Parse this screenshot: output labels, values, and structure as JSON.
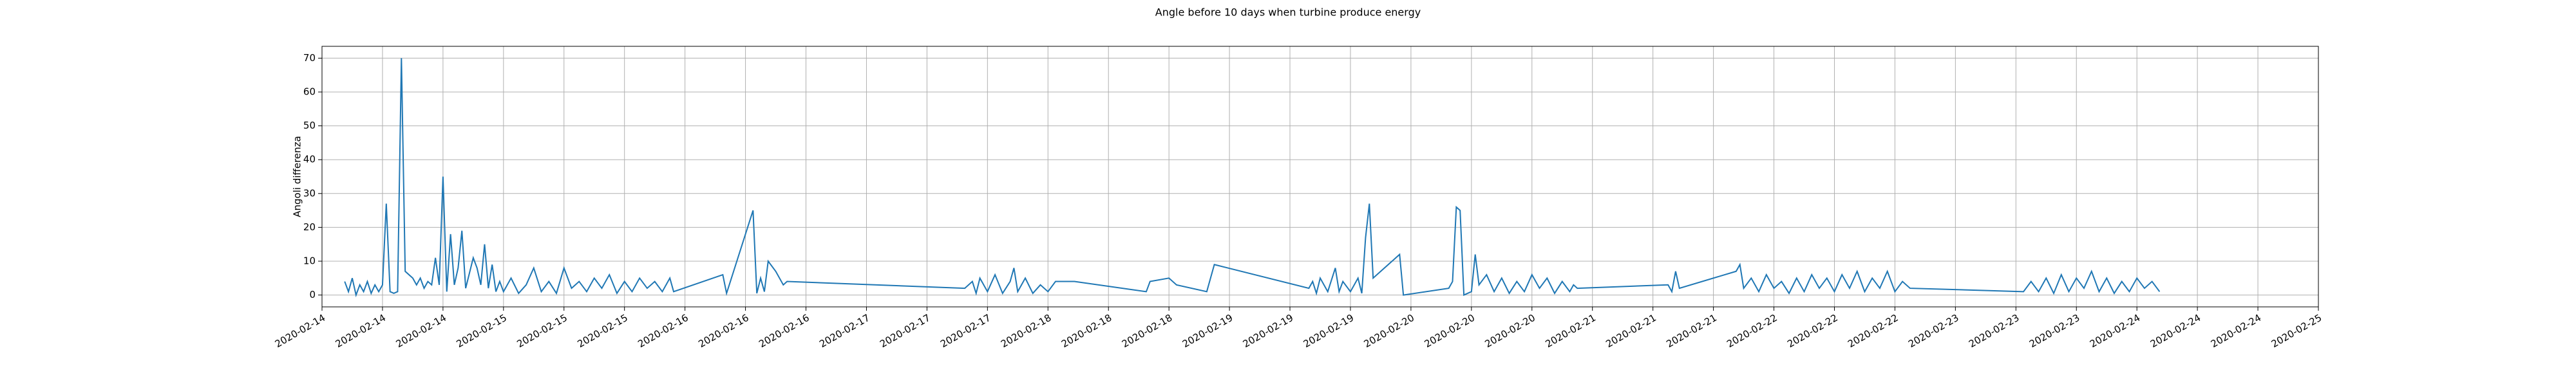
{
  "chart_data": {
    "type": "line",
    "title": "Angle before 10 days when turbine produce energy",
    "y_label": "Angoli differenza",
    "grid": true,
    "xlim": [
      "2020-02-14 00:00",
      "2020-02-25 00:00"
    ],
    "ylim": [
      -3.5,
      73.5
    ],
    "yticks": [
      0,
      10,
      20,
      30,
      40,
      50,
      60,
      70
    ],
    "xticks": [
      {
        "value": "2020-02-14 00:00",
        "label": "2020-02-14"
      },
      {
        "value": "2020-02-14 08:00",
        "label": "2020-02-14"
      },
      {
        "value": "2020-02-14 16:00",
        "label": "2020-02-14"
      },
      {
        "value": "2020-02-15 00:00",
        "label": "2020-02-15"
      },
      {
        "value": "2020-02-15 08:00",
        "label": "2020-02-15"
      },
      {
        "value": "2020-02-15 16:00",
        "label": "2020-02-15"
      },
      {
        "value": "2020-02-16 00:00",
        "label": "2020-02-16"
      },
      {
        "value": "2020-02-16 08:00",
        "label": "2020-02-16"
      },
      {
        "value": "2020-02-16 16:00",
        "label": "2020-02-16"
      },
      {
        "value": "2020-02-17 00:00",
        "label": "2020-02-17"
      },
      {
        "value": "2020-02-17 08:00",
        "label": "2020-02-17"
      },
      {
        "value": "2020-02-17 16:00",
        "label": "2020-02-17"
      },
      {
        "value": "2020-02-18 00:00",
        "label": "2020-02-18"
      },
      {
        "value": "2020-02-18 08:00",
        "label": "2020-02-18"
      },
      {
        "value": "2020-02-18 16:00",
        "label": "2020-02-18"
      },
      {
        "value": "2020-02-19 00:00",
        "label": "2020-02-19"
      },
      {
        "value": "2020-02-19 08:00",
        "label": "2020-02-19"
      },
      {
        "value": "2020-02-19 16:00",
        "label": "2020-02-19"
      },
      {
        "value": "2020-02-20 00:00",
        "label": "2020-02-20"
      },
      {
        "value": "2020-02-20 08:00",
        "label": "2020-02-20"
      },
      {
        "value": "2020-02-20 16:00",
        "label": "2020-02-20"
      },
      {
        "value": "2020-02-21 00:00",
        "label": "2020-02-21"
      },
      {
        "value": "2020-02-21 08:00",
        "label": "2020-02-21"
      },
      {
        "value": "2020-02-21 16:00",
        "label": "2020-02-21"
      },
      {
        "value": "2020-02-22 00:00",
        "label": "2020-02-22"
      },
      {
        "value": "2020-02-22 08:00",
        "label": "2020-02-22"
      },
      {
        "value": "2020-02-22 16:00",
        "label": "2020-02-22"
      },
      {
        "value": "2020-02-23 00:00",
        "label": "2020-02-23"
      },
      {
        "value": "2020-02-23 08:00",
        "label": "2020-02-23"
      },
      {
        "value": "2020-02-23 16:00",
        "label": "2020-02-23"
      },
      {
        "value": "2020-02-24 00:00",
        "label": "2020-02-24"
      },
      {
        "value": "2020-02-24 08:00",
        "label": "2020-02-24"
      },
      {
        "value": "2020-02-24 16:00",
        "label": "2020-02-24"
      },
      {
        "value": "2020-02-25 00:00",
        "label": "2020-02-25"
      }
    ],
    "series": [
      {
        "color": "#1f77b4",
        "x": [
          "2020-02-14 03:00",
          "2020-02-14 03:30",
          "2020-02-14 04:00",
          "2020-02-14 04:30",
          "2020-02-14 05:00",
          "2020-02-14 05:30",
          "2020-02-14 06:00",
          "2020-02-14 06:30",
          "2020-02-14 07:00",
          "2020-02-14 07:30",
          "2020-02-14 08:00",
          "2020-02-14 08:30",
          "2020-02-14 09:00",
          "2020-02-14 09:30",
          "2020-02-14 10:00",
          "2020-02-14 10:30",
          "2020-02-14 11:00",
          "2020-02-14 12:00",
          "2020-02-14 12:30",
          "2020-02-14 13:00",
          "2020-02-14 13:30",
          "2020-02-14 14:00",
          "2020-02-14 14:30",
          "2020-02-14 15:00",
          "2020-02-14 15:30",
          "2020-02-14 16:00",
          "2020-02-14 16:30",
          "2020-02-14 17:00",
          "2020-02-14 17:30",
          "2020-02-14 18:00",
          "2020-02-14 18:30",
          "2020-02-14 19:00",
          "2020-02-14 20:00",
          "2020-02-14 20:30",
          "2020-02-14 21:00",
          "2020-02-14 21:30",
          "2020-02-14 22:00",
          "2020-02-14 22:30",
          "2020-02-14 23:00",
          "2020-02-14 23:30",
          "2020-02-15 00:00",
          "2020-02-15 01:00",
          "2020-02-15 02:00",
          "2020-02-15 03:00",
          "2020-02-15 04:00",
          "2020-02-15 05:00",
          "2020-02-15 06:00",
          "2020-02-15 07:00",
          "2020-02-15 08:00",
          "2020-02-15 09:00",
          "2020-02-15 10:00",
          "2020-02-15 11:00",
          "2020-02-15 12:00",
          "2020-02-15 13:00",
          "2020-02-15 14:00",
          "2020-02-15 15:00",
          "2020-02-15 16:00",
          "2020-02-15 17:00",
          "2020-02-15 18:00",
          "2020-02-15 19:00",
          "2020-02-15 20:00",
          "2020-02-15 21:00",
          "2020-02-15 22:00",
          "2020-02-15 22:30",
          "2020-02-16 05:00",
          "2020-02-16 05:30",
          "2020-02-16 06:00",
          "2020-02-16 09:00",
          "2020-02-16 09:30",
          "2020-02-16 10:00",
          "2020-02-16 10:30",
          "2020-02-16 11:00",
          "2020-02-16 12:00",
          "2020-02-16 13:00",
          "2020-02-16 13:30",
          "2020-02-17 13:00",
          "2020-02-17 14:00",
          "2020-02-17 14:30",
          "2020-02-17 15:00",
          "2020-02-17 16:00",
          "2020-02-17 17:00",
          "2020-02-17 18:00",
          "2020-02-17 19:00",
          "2020-02-17 19:30",
          "2020-02-17 20:00",
          "2020-02-17 21:00",
          "2020-02-17 22:00",
          "2020-02-17 23:00",
          "2020-02-18 00:00",
          "2020-02-18 01:00",
          "2020-02-18 03:30",
          "2020-02-18 13:00",
          "2020-02-18 13:30",
          "2020-02-18 16:00",
          "2020-02-18 17:00",
          "2020-02-18 21:00",
          "2020-02-18 22:00",
          "2020-02-19 10:30",
          "2020-02-19 11:00",
          "2020-02-19 11:30",
          "2020-02-19 12:00",
          "2020-02-19 13:00",
          "2020-02-19 14:00",
          "2020-02-19 14:30",
          "2020-02-19 15:00",
          "2020-02-19 16:00",
          "2020-02-19 17:00",
          "2020-02-19 17:30",
          "2020-02-19 18:00",
          "2020-02-19 18:30",
          "2020-02-19 19:00",
          "2020-02-19 22:30",
          "2020-02-19 23:00",
          "2020-02-20 05:00",
          "2020-02-20 05:30",
          "2020-02-20 06:00",
          "2020-02-20 06:30",
          "2020-02-20 07:00",
          "2020-02-20 08:00",
          "2020-02-20 08:30",
          "2020-02-20 09:00",
          "2020-02-20 10:00",
          "2020-02-20 11:00",
          "2020-02-20 12:00",
          "2020-02-20 13:00",
          "2020-02-20 14:00",
          "2020-02-20 15:00",
          "2020-02-20 16:00",
          "2020-02-20 17:00",
          "2020-02-20 18:00",
          "2020-02-20 19:00",
          "2020-02-20 20:00",
          "2020-02-20 21:00",
          "2020-02-20 21:30",
          "2020-02-20 22:00",
          "2020-02-21 10:00",
          "2020-02-21 10:30",
          "2020-02-21 11:00",
          "2020-02-21 11:30",
          "2020-02-21 19:00",
          "2020-02-21 19:30",
          "2020-02-21 20:00",
          "2020-02-21 21:00",
          "2020-02-21 22:00",
          "2020-02-21 23:00",
          "2020-02-22 00:00",
          "2020-02-22 01:00",
          "2020-02-22 02:00",
          "2020-02-22 03:00",
          "2020-02-22 04:00",
          "2020-02-22 05:00",
          "2020-02-22 06:00",
          "2020-02-22 07:00",
          "2020-02-22 08:00",
          "2020-02-22 09:00",
          "2020-02-22 10:00",
          "2020-02-22 11:00",
          "2020-02-22 12:00",
          "2020-02-22 13:00",
          "2020-02-22 14:00",
          "2020-02-22 15:00",
          "2020-02-22 16:00",
          "2020-02-22 17:00",
          "2020-02-22 18:00",
          "2020-02-23 09:00",
          "2020-02-23 10:00",
          "2020-02-23 11:00",
          "2020-02-23 12:00",
          "2020-02-23 13:00",
          "2020-02-23 14:00",
          "2020-02-23 15:00",
          "2020-02-23 16:00",
          "2020-02-23 17:00",
          "2020-02-23 18:00",
          "2020-02-23 19:00",
          "2020-02-23 20:00",
          "2020-02-23 21:00",
          "2020-02-23 22:00",
          "2020-02-23 23:00",
          "2020-02-24 00:00",
          "2020-02-24 01:00",
          "2020-02-24 02:00",
          "2020-02-24 03:00"
        ],
        "values": [
          4,
          1,
          5,
          0,
          3,
          1,
          4,
          0.5,
          3,
          1,
          3,
          27,
          1,
          0.5,
          1,
          70,
          7,
          5,
          3,
          5,
          2,
          4,
          3,
          11,
          3,
          35,
          1,
          18,
          3,
          8,
          19,
          2,
          11,
          8,
          3,
          15,
          2,
          9,
          1,
          4,
          1,
          5,
          0.5,
          3,
          8,
          1,
          4,
          0.5,
          8,
          2,
          4,
          1,
          5,
          2,
          6,
          0.5,
          4,
          1,
          5,
          2,
          4,
          1,
          5,
          1,
          6,
          0.5,
          4,
          25,
          0.5,
          5,
          1,
          10,
          7,
          3,
          4,
          2,
          4,
          0.5,
          5,
          1,
          6,
          0.5,
          4,
          8,
          1,
          5,
          0.5,
          3,
          1,
          4,
          4,
          1,
          4,
          5,
          3,
          1,
          9,
          2,
          4,
          0.5,
          5,
          1,
          8,
          1,
          4,
          1,
          5,
          0.5,
          17,
          27,
          5,
          12,
          0,
          2,
          4,
          26,
          25,
          0,
          1,
          12,
          3,
          6,
          1,
          5,
          0.5,
          4,
          1,
          6,
          2,
          5,
          0.5,
          4,
          1,
          3,
          2,
          3,
          1,
          7,
          2,
          7,
          9,
          2,
          5,
          1,
          6,
          2,
          4,
          0.5,
          5,
          1,
          6,
          2,
          5,
          1,
          6,
          2,
          7,
          1,
          5,
          2,
          7,
          1,
          4,
          2,
          1,
          4,
          1,
          5,
          0.5,
          6,
          1,
          5,
          2,
          7,
          1,
          5,
          0.5,
          4,
          1,
          5,
          2,
          4,
          1
        ]
      }
    ]
  }
}
